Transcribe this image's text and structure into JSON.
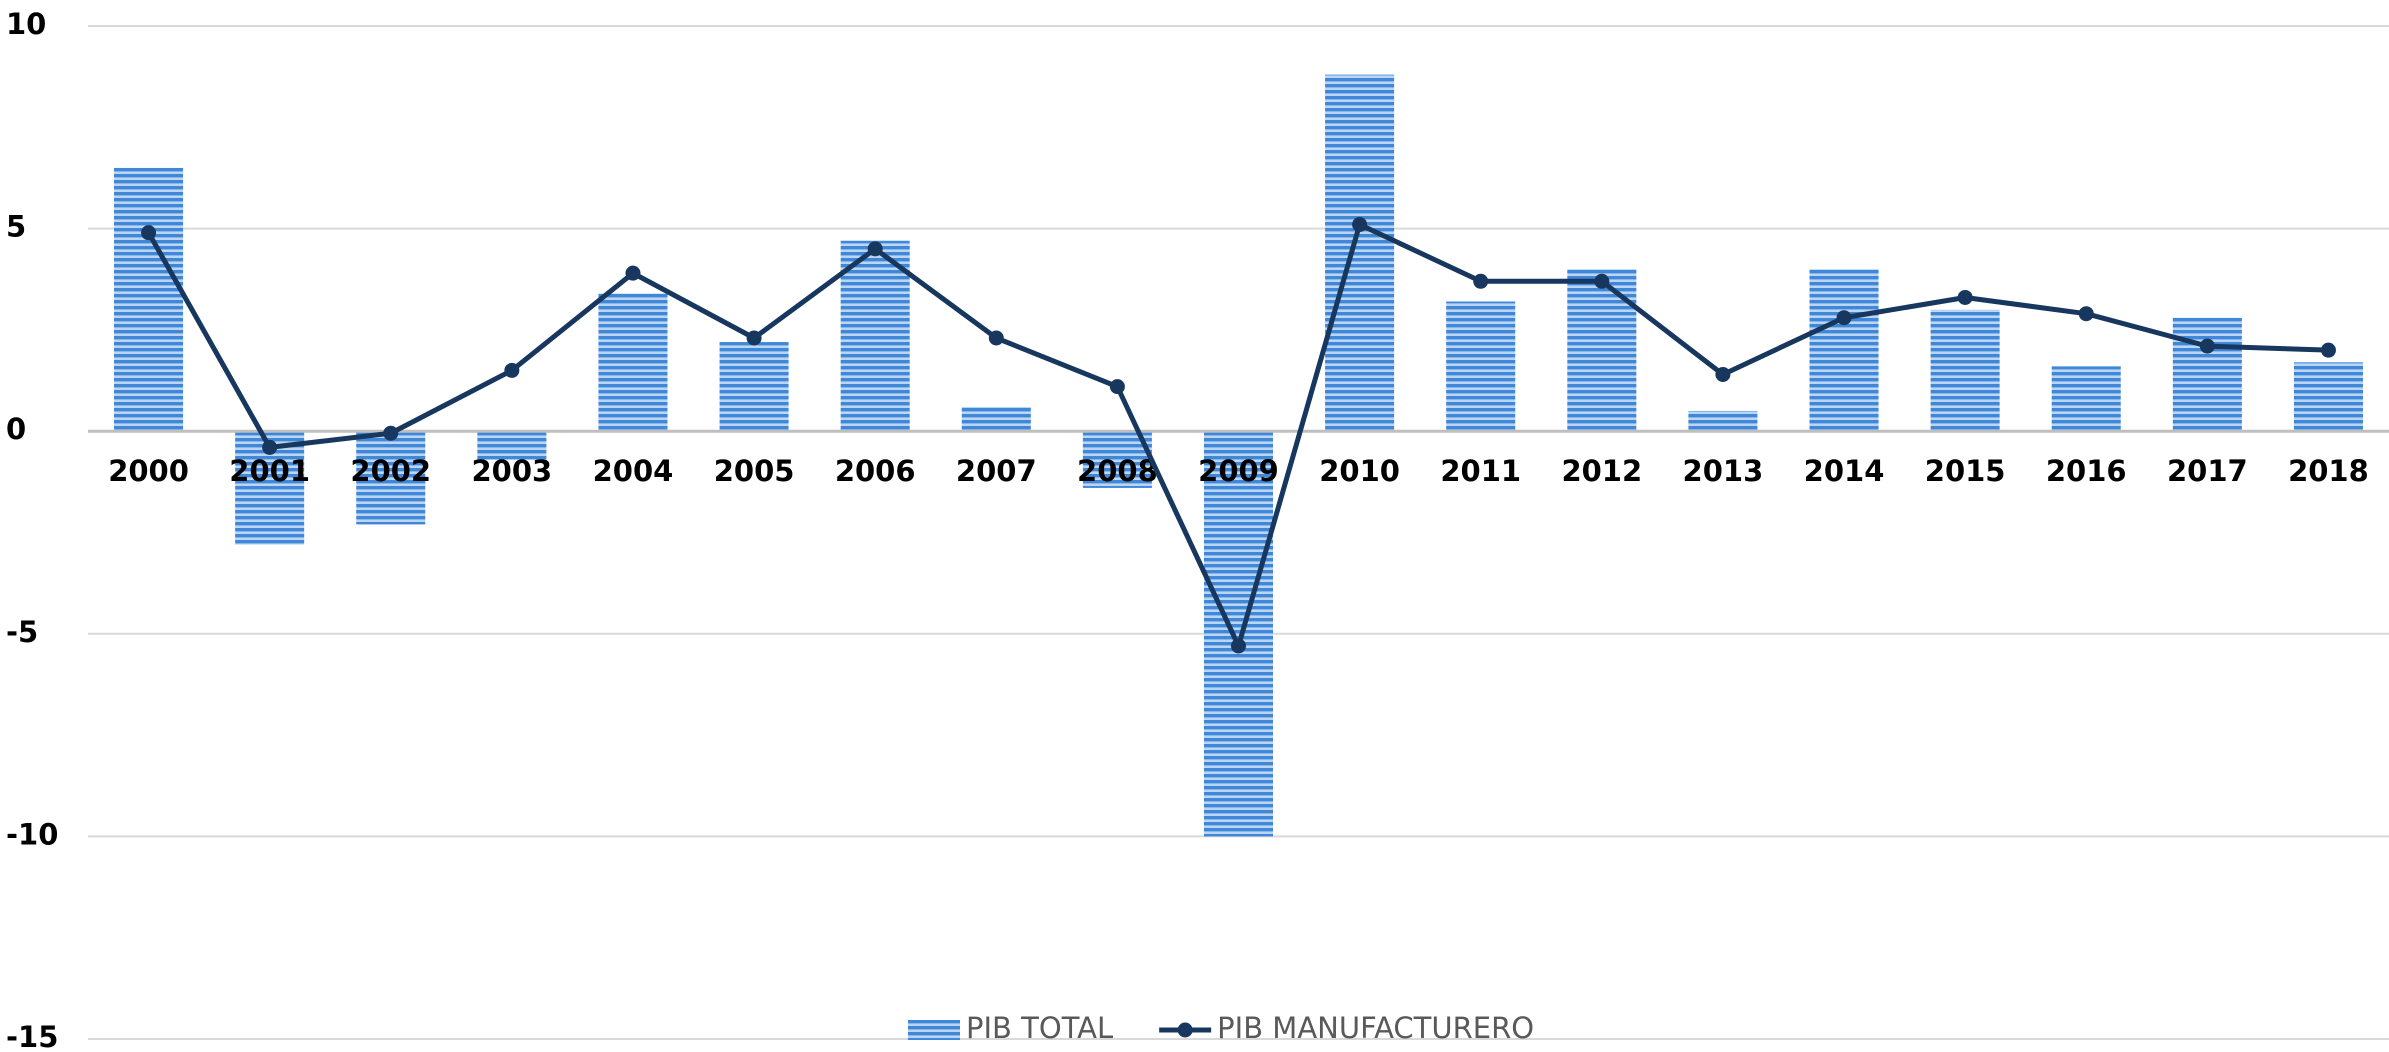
{
  "chart_data": {
    "type": "combo",
    "categories": [
      "2000",
      "2001",
      "2002",
      "2003",
      "2004",
      "2005",
      "2006",
      "2007",
      "2008",
      "2009",
      "2010",
      "2011",
      "2012",
      "2013",
      "2014",
      "2015",
      "2016",
      "2017",
      "2018"
    ],
    "series": [
      {
        "name": "PIB TOTAL",
        "type": "bar",
        "color": "#3f87d8",
        "values": [
          6.5,
          -2.8,
          -2.3,
          -0.7,
          3.4,
          2.2,
          4.7,
          0.6,
          -1.4,
          -10.0,
          8.8,
          3.2,
          4.0,
          0.5,
          4.0,
          3.0,
          1.6,
          2.8,
          1.7
        ]
      },
      {
        "name": "PIB MANUFACTURERO",
        "type": "line",
        "color": "#17375e",
        "values": [
          4.9,
          -0.4,
          -0.05,
          1.5,
          3.9,
          2.3,
          4.5,
          2.3,
          1.1,
          -5.3,
          5.1,
          3.7,
          3.7,
          1.4,
          2.8,
          3.3,
          2.9,
          2.1,
          2.0
        ]
      }
    ],
    "ylim": [
      -15,
      10
    ],
    "yticks": [
      -15,
      -10,
      -5,
      0,
      5,
      10
    ],
    "grid": true,
    "legend": "bottom"
  }
}
